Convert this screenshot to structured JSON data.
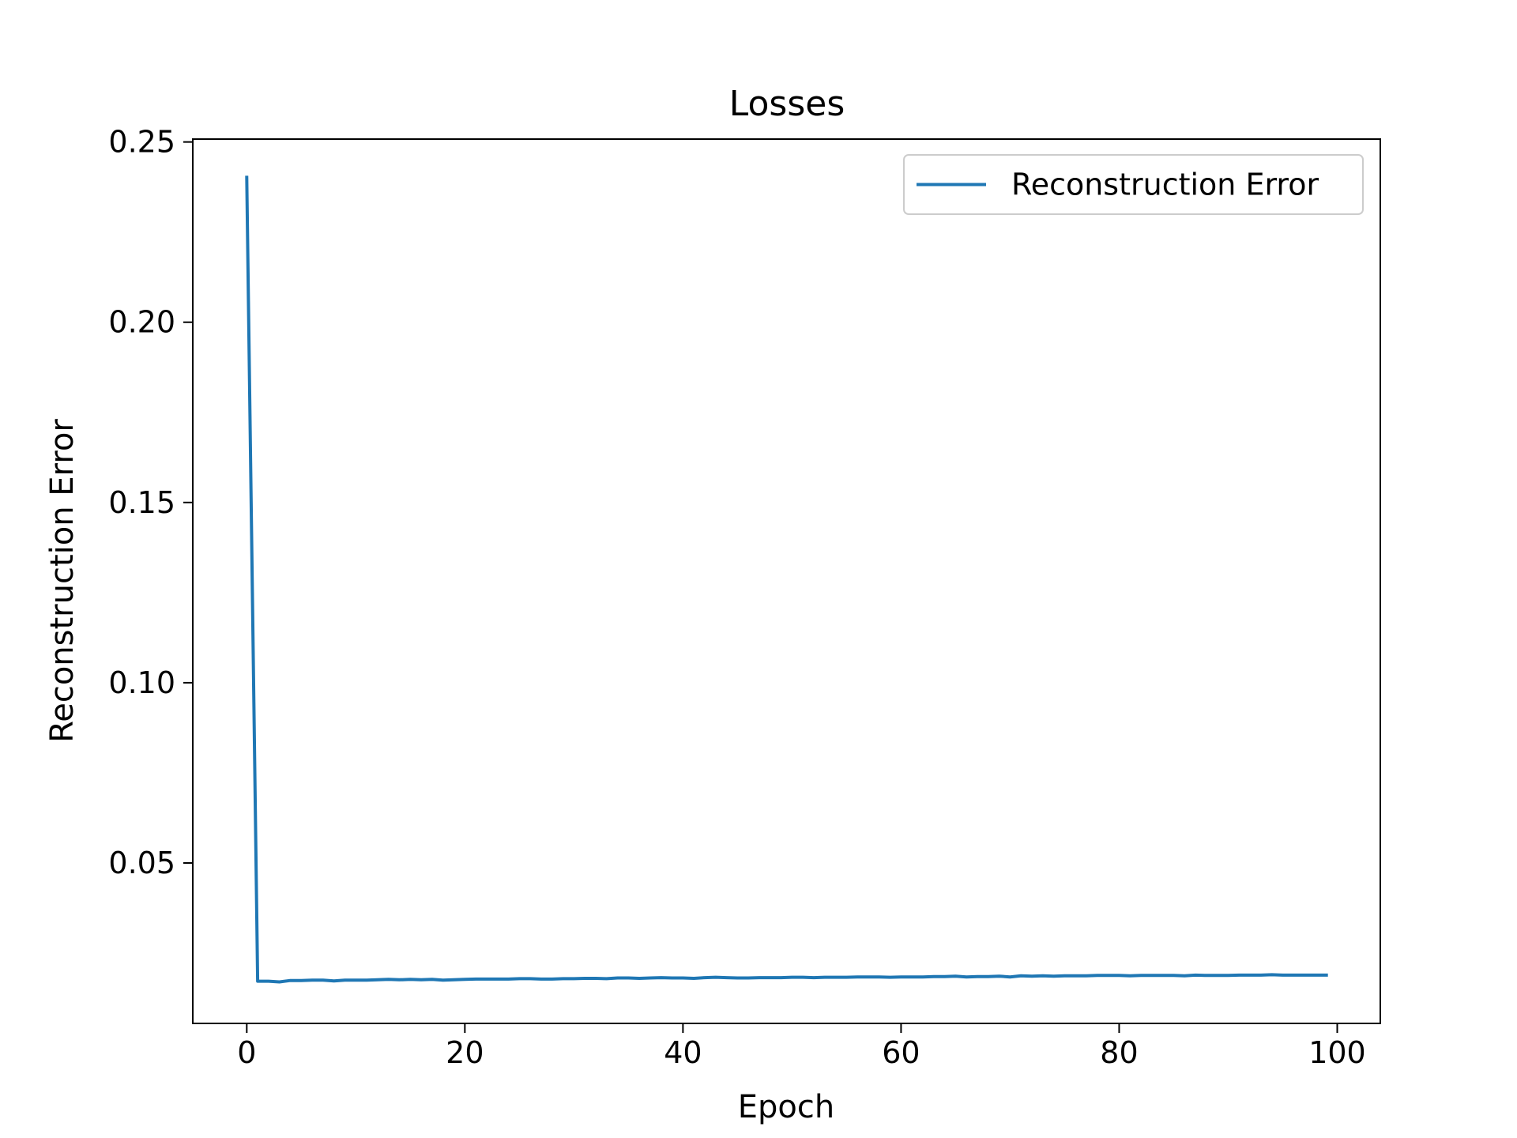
{
  "chart_data": {
    "type": "line",
    "title": "Losses",
    "xlabel": "Epoch",
    "ylabel": "Reconstruction Error",
    "xlim": [
      -4.95,
      103.95
    ],
    "ylim": [
      0.0055,
      0.2508
    ],
    "xticks": [
      0,
      20,
      40,
      60,
      80,
      100
    ],
    "xtick_labels": [
      "0",
      "20",
      "40",
      "60",
      "80",
      "100"
    ],
    "yticks": [
      0.05,
      0.1,
      0.15,
      0.2,
      0.25
    ],
    "ytick_labels": [
      "0.05",
      "0.10",
      "0.15",
      "0.20",
      "0.25"
    ],
    "grid": false,
    "legend": {
      "position": "top-right",
      "entries": [
        "Reconstruction Error"
      ]
    },
    "series": [
      {
        "name": "Reconstruction Error",
        "color": "#1f77b4",
        "x": [
          0,
          1,
          2,
          3,
          4,
          5,
          6,
          7,
          8,
          9,
          10,
          11,
          12,
          13,
          14,
          15,
          16,
          17,
          18,
          19,
          20,
          21,
          22,
          23,
          24,
          25,
          26,
          27,
          28,
          29,
          30,
          31,
          32,
          33,
          34,
          35,
          36,
          37,
          38,
          39,
          40,
          41,
          42,
          43,
          44,
          45,
          46,
          47,
          48,
          49,
          50,
          51,
          52,
          53,
          54,
          55,
          56,
          57,
          58,
          59,
          60,
          61,
          62,
          63,
          64,
          65,
          66,
          67,
          68,
          69,
          70,
          71,
          72,
          73,
          74,
          75,
          76,
          77,
          78,
          79,
          80,
          81,
          82,
          83,
          84,
          85,
          86,
          87,
          88,
          89,
          90,
          91,
          92,
          93,
          94,
          95,
          96,
          97,
          98,
          99
        ],
        "values": [
          0.2402,
          0.0172,
          0.0172,
          0.017,
          0.0174,
          0.0174,
          0.0175,
          0.0175,
          0.0173,
          0.0175,
          0.0175,
          0.0175,
          0.0176,
          0.0177,
          0.0176,
          0.0177,
          0.0176,
          0.0177,
          0.0175,
          0.0176,
          0.0177,
          0.0178,
          0.0178,
          0.0178,
          0.0178,
          0.0179,
          0.0179,
          0.0178,
          0.0178,
          0.0179,
          0.0179,
          0.018,
          0.018,
          0.0179,
          0.0181,
          0.0181,
          0.018,
          0.0181,
          0.0182,
          0.0181,
          0.0181,
          0.018,
          0.0182,
          0.0183,
          0.0182,
          0.0181,
          0.0181,
          0.0182,
          0.0182,
          0.0182,
          0.0183,
          0.0183,
          0.0182,
          0.0183,
          0.0183,
          0.0183,
          0.0184,
          0.0184,
          0.0184,
          0.0183,
          0.0184,
          0.0184,
          0.0184,
          0.0185,
          0.0185,
          0.0186,
          0.0184,
          0.0185,
          0.0185,
          0.0186,
          0.0184,
          0.0187,
          0.0186,
          0.0187,
          0.0186,
          0.0187,
          0.0187,
          0.0187,
          0.0188,
          0.0188,
          0.0188,
          0.0187,
          0.0188,
          0.0188,
          0.0188,
          0.0188,
          0.0187,
          0.0189,
          0.0188,
          0.0188,
          0.0188,
          0.0189,
          0.0189,
          0.0189,
          0.019,
          0.0189,
          0.0189,
          0.0189,
          0.0189,
          0.0189
        ]
      }
    ]
  }
}
